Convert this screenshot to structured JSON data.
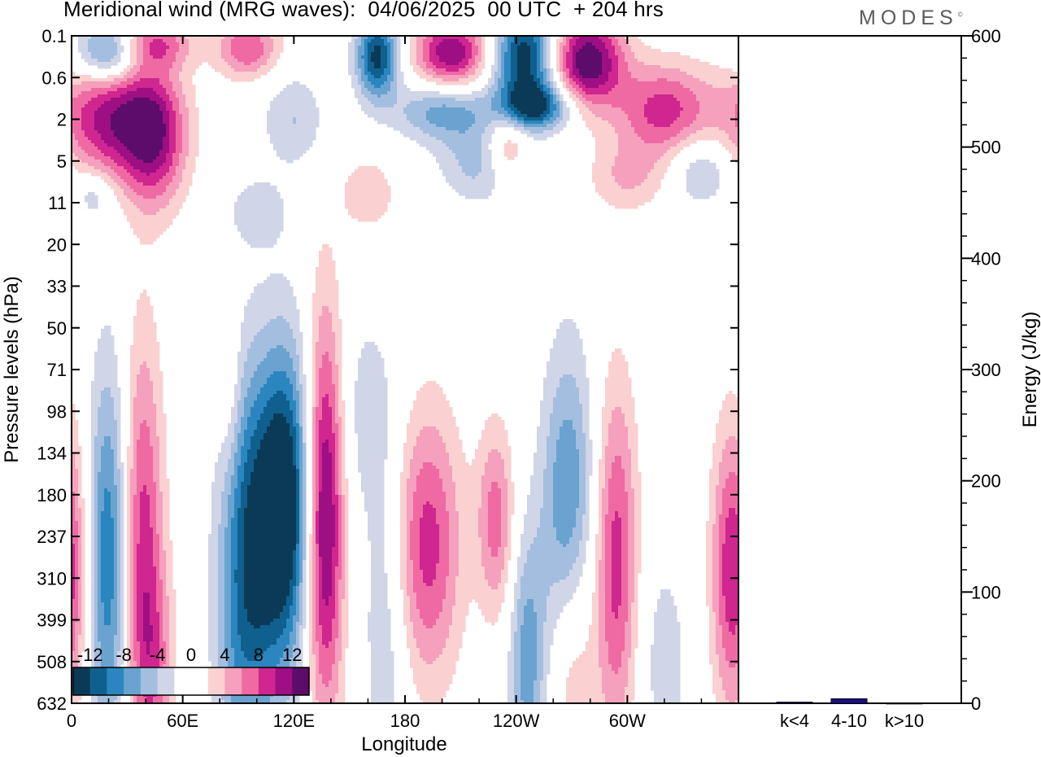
{
  "title": "Meridional wind (MRG waves):  04/06/2025  00 UTC  + 204 hrs",
  "brand": "MODES",
  "brand_mark": "©",
  "chart_data": [
    {
      "type": "heatmap",
      "title": "Meridional wind (MRG waves):  04/06/2025  00 UTC  + 204 hrs",
      "xlabel": "Longitude",
      "ylabel": "Pressure levels (hPa)",
      "x_ticks": [
        "0",
        "60E",
        "120E",
        "180",
        "120W",
        "60W"
      ],
      "y_ticks": [
        "0.1",
        "0.6",
        "2",
        "5",
        "11",
        "20",
        "33",
        "50",
        "71",
        "98",
        "134",
        "180",
        "237",
        "310",
        "399",
        "508",
        "632"
      ],
      "colorbar": {
        "levels": [
          -14,
          -12,
          -10,
          -8,
          -6,
          -4,
          -2,
          0,
          2,
          4,
          6,
          8,
          10,
          12,
          14
        ],
        "labels": [
          "-12",
          "-8",
          "-4",
          "0",
          "4",
          "8",
          "12"
        ],
        "colors": [
          "#0b3a57",
          "#10608f",
          "#2b86bf",
          "#6aa3cf",
          "#a4bedf",
          "#d0d5e8",
          "#ffffff",
          "#ffffff",
          "#fad0d0",
          "#f5a0bc",
          "#ef6aa3",
          "#cf2690",
          "#9e0f83",
          "#5d0c6b"
        ]
      },
      "features": [
        {
          "lon": 20,
          "lev": 12.5,
          "v": -10,
          "w": 8,
          "h": 3.2
        },
        {
          "lon": 38,
          "lev": 12.0,
          "v": 9,
          "w": 8,
          "h": 3.4
        },
        {
          "lon": 98,
          "lev": 12.0,
          "v": -12,
          "w": 12,
          "h": 3.0
        },
        {
          "lon": 116,
          "lev": 11.2,
          "v": -13,
          "w": 9,
          "h": 2.6
        },
        {
          "lon": 137,
          "lev": 11.5,
          "v": 13,
          "w": 7,
          "h": 3.4
        },
        {
          "lon": 192,
          "lev": 12.2,
          "v": 9,
          "w": 13,
          "h": 2.3
        },
        {
          "lon": 229,
          "lev": 11.6,
          "v": 7,
          "w": 7,
          "h": 1.6
        },
        {
          "lon": 268,
          "lev": 11.8,
          "v": -10,
          "w": 10,
          "h": 2.8
        },
        {
          "lon": 294,
          "lev": 12.6,
          "v": 9,
          "w": 8,
          "h": 3.0
        },
        {
          "lon": 357,
          "lev": 12.8,
          "v": 10,
          "w": 8,
          "h": 2.4
        },
        {
          "lon": 170,
          "lev": 14.0,
          "v": -4,
          "w": 9,
          "h": 2.8
        },
        {
          "lon": 246,
          "lev": 15.0,
          "v": -7,
          "w": 7,
          "h": 2.2
        },
        {
          "lon": 270,
          "lev": 14.6,
          "v": 7,
          "w": 9,
          "h": 2.3
        },
        {
          "lon": 45,
          "lev": 15.2,
          "v": 5,
          "w": 8,
          "h": 1.8
        },
        {
          "lon": 90,
          "lev": 15.3,
          "v": -3,
          "w": 10,
          "h": 2.0
        },
        {
          "lon": 320,
          "lev": 15.0,
          "v": -3,
          "w": 10,
          "h": 2.0
        },
        {
          "lon": 160,
          "lev": 9.0,
          "v": -3,
          "w": 12,
          "h": 1.8
        },
        {
          "lon": 85,
          "lev": 8.5,
          "v": 3,
          "w": 5,
          "h": 1.5
        },
        {
          "lon": 20,
          "lev": 0.4,
          "v": -10,
          "w": 12,
          "h": 0.5
        },
        {
          "lon": 45,
          "lev": 0.2,
          "v": 7,
          "w": 14,
          "h": 0.4
        },
        {
          "lon": 95,
          "lev": 0.3,
          "v": 8,
          "w": 12,
          "h": 0.5
        },
        {
          "lon": 165,
          "lev": 0.5,
          "v": -13,
          "w": 8,
          "h": 0.7
        },
        {
          "lon": 205,
          "lev": 0.4,
          "v": 12,
          "w": 14,
          "h": 0.6
        },
        {
          "lon": 245,
          "lev": 0.5,
          "v": -14,
          "w": 12,
          "h": 0.8
        },
        {
          "lon": 278,
          "lev": 0.6,
          "v": 14,
          "w": 14,
          "h": 0.8
        },
        {
          "lon": 22,
          "lev": 2.0,
          "v": 11,
          "w": 20,
          "h": 1.0
        },
        {
          "lon": 45,
          "lev": 2.5,
          "v": 9,
          "w": 12,
          "h": 1.2
        },
        {
          "lon": 200,
          "lev": 1.8,
          "v": -7,
          "w": 18,
          "h": 0.5
        },
        {
          "lon": 250,
          "lev": 1.7,
          "v": -12,
          "w": 14,
          "h": 0.4
        },
        {
          "lon": 320,
          "lev": 1.8,
          "v": 9,
          "w": 18,
          "h": 0.8
        },
        {
          "lon": 120,
          "lev": 2.0,
          "v": -4,
          "w": 12,
          "h": 0.8
        },
        {
          "lon": 235,
          "lev": 2.6,
          "v": 6,
          "w": 8,
          "h": 0.6
        },
        {
          "lon": 300,
          "lev": 3.4,
          "v": 4,
          "w": 15,
          "h": 0.6
        },
        {
          "lon": 160,
          "lev": 3.8,
          "v": 4,
          "w": 10,
          "h": 0.6
        },
        {
          "lon": 220,
          "lev": 3.0,
          "v": -5,
          "w": 15,
          "h": 0.7
        },
        {
          "lon": 340,
          "lev": 3.2,
          "v": -5,
          "w": 12,
          "h": 0.6
        },
        {
          "lon": 12,
          "lev": 3.8,
          "v": -4,
          "w": 7,
          "h": 0.4
        },
        {
          "lon": 100,
          "lev": 4.2,
          "v": -3,
          "w": 12,
          "h": 0.6
        }
      ]
    },
    {
      "type": "bar",
      "categories": [
        "k<4",
        "4-10",
        "k>10"
      ],
      "values": [
        1,
        4,
        0
      ],
      "ylabel": "Energy (J/kg)",
      "ylim": [
        0,
        600
      ],
      "y_ticks": [
        "0",
        "100",
        "200",
        "300",
        "400",
        "500",
        "600"
      ],
      "bar_color": "#1a0d8c"
    }
  ]
}
